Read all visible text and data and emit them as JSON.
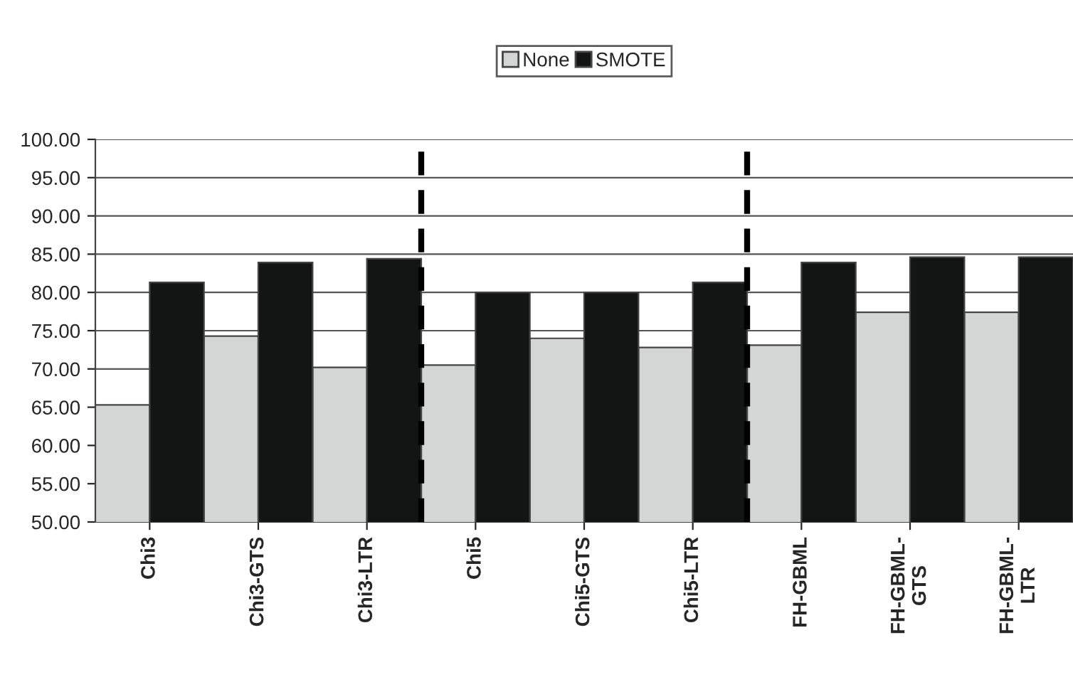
{
  "chart_data": {
    "type": "bar",
    "categories": [
      "Chi3",
      "Chi3-GTS",
      "Chi3-LTR",
      "Chi5",
      "Chi5-GTS",
      "Chi5-LTR",
      "FH-GBML",
      "FH-GBML-\nGTS",
      "FH-GBML-\nLTR"
    ],
    "series": [
      {
        "name": "None",
        "color": "#d4d6d5",
        "values": [
          65.3,
          74.3,
          70.2,
          70.5,
          74.0,
          72.8,
          73.1,
          77.4,
          77.4
        ]
      },
      {
        "name": "SMOTE",
        "color": "#131514",
        "values": [
          81.3,
          83.9,
          84.4,
          80.0,
          80.0,
          81.3,
          83.9,
          84.6,
          84.6
        ]
      }
    ],
    "ylim": [
      50,
      100
    ],
    "yticks": [
      {
        "value": 50,
        "label": "50.00"
      },
      {
        "value": 55,
        "label": "55.00"
      },
      {
        "value": 60,
        "label": "60.00"
      },
      {
        "value": 65,
        "label": "65.00"
      },
      {
        "value": 70,
        "label": "70.00"
      },
      {
        "value": 75,
        "label": "75.00"
      },
      {
        "value": 80,
        "label": "80.00"
      },
      {
        "value": 85,
        "label": "85.00"
      },
      {
        "value": 90,
        "label": "90.00"
      },
      {
        "value": 95,
        "label": "95.00"
      },
      {
        "value": 100,
        "label": "100.00"
      }
    ],
    "grid": "y",
    "legend": "top"
  }
}
